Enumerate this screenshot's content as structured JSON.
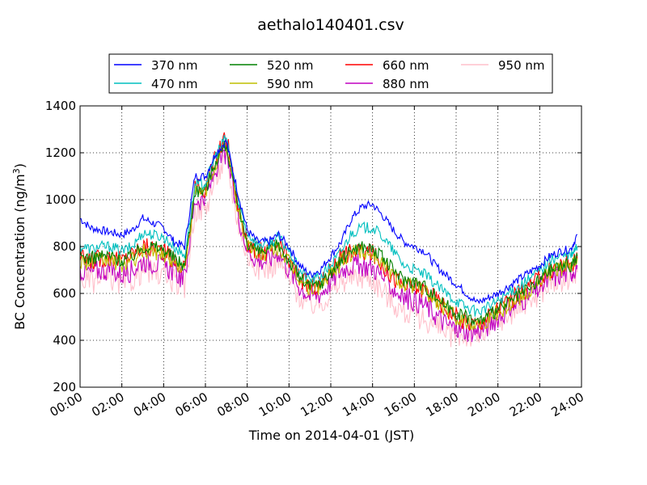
{
  "chart_data": {
    "type": "line",
    "title": "aethalo140401.csv",
    "xlabel": "Time on 2014-04-01 (JST)",
    "ylabel_main": "BC Concentration (ng/m",
    "ylabel_sup": "3",
    "ylabel_end": ")",
    "xlim_hours": [
      0,
      24
    ],
    "ylim": [
      200,
      1400
    ],
    "grid": true,
    "legend_position": "top",
    "x_ticks": [
      {
        "hour": 0,
        "label": "00:00"
      },
      {
        "hour": 2,
        "label": "02:00"
      },
      {
        "hour": 4,
        "label": "04:00"
      },
      {
        "hour": 6,
        "label": "06:00"
      },
      {
        "hour": 8,
        "label": "08:00"
      },
      {
        "hour": 10,
        "label": "10:00"
      },
      {
        "hour": 12,
        "label": "12:00"
      },
      {
        "hour": 14,
        "label": "14:00"
      },
      {
        "hour": 16,
        "label": "16:00"
      },
      {
        "hour": 18,
        "label": "18:00"
      },
      {
        "hour": 20,
        "label": "20:00"
      },
      {
        "hour": 22,
        "label": "22:00"
      },
      {
        "hour": 24,
        "label": "24:00"
      }
    ],
    "y_ticks": [
      200,
      400,
      600,
      800,
      1000,
      1200,
      1400
    ],
    "x_hours": [
      0,
      0.5,
      1,
      1.5,
      2,
      2.5,
      3,
      3.5,
      4,
      4.5,
      5,
      5.5,
      6,
      6.5,
      7,
      7.5,
      8,
      8.5,
      9,
      9.5,
      10,
      10.5,
      11,
      11.5,
      12,
      12.5,
      13,
      13.5,
      14,
      14.5,
      15,
      15.5,
      16,
      16.5,
      17,
      17.5,
      18,
      18.5,
      19,
      19.5,
      20,
      20.5,
      21,
      21.5,
      22,
      22.5,
      23,
      23.5,
      23.8
    ],
    "series": [
      {
        "name": "370 nm",
        "color": "#0000ff",
        "values": [
          920,
          880,
          870,
          860,
          850,
          870,
          920,
          900,
          880,
          820,
          800,
          1100,
          1100,
          1200,
          1250,
          1050,
          870,
          820,
          820,
          850,
          800,
          720,
          680,
          700,
          760,
          820,
          920,
          970,
          980,
          930,
          870,
          820,
          800,
          780,
          720,
          680,
          640,
          600,
          560,
          580,
          600,
          630,
          660,
          690,
          720,
          760,
          780,
          790,
          850
        ]
      },
      {
        "name": "470 nm",
        "color": "#00bfbf",
        "values": [
          800,
          790,
          800,
          800,
          780,
          800,
          860,
          850,
          840,
          800,
          760,
          1060,
          1070,
          1190,
          1270,
          1020,
          860,
          810,
          810,
          840,
          780,
          700,
          660,
          670,
          720,
          780,
          860,
          880,
          880,
          840,
          780,
          720,
          700,
          680,
          640,
          600,
          570,
          540,
          520,
          540,
          570,
          600,
          630,
          660,
          700,
          740,
          760,
          760,
          800
        ]
      },
      {
        "name": "520 nm",
        "color": "#008000",
        "values": [
          760,
          750,
          760,
          760,
          740,
          760,
          800,
          800,
          790,
          750,
          720,
          1040,
          1040,
          1170,
          1240,
          990,
          820,
          780,
          780,
          810,
          740,
          670,
          630,
          640,
          690,
          740,
          790,
          800,
          790,
          750,
          700,
          660,
          650,
          630,
          590,
          550,
          520,
          500,
          480,
          500,
          530,
          560,
          590,
          620,
          660,
          700,
          720,
          720,
          760
        ]
      },
      {
        "name": "590 nm",
        "color": "#bfbf00",
        "values": [
          740,
          730,
          740,
          740,
          720,
          740,
          780,
          780,
          770,
          730,
          700,
          1030,
          1030,
          1160,
          1230,
          980,
          810,
          770,
          770,
          800,
          730,
          660,
          620,
          630,
          680,
          730,
          770,
          780,
          770,
          730,
          680,
          640,
          630,
          610,
          570,
          530,
          500,
          480,
          470,
          490,
          520,
          550,
          580,
          610,
          650,
          690,
          710,
          710,
          750
        ]
      },
      {
        "name": "660 nm",
        "color": "#ff0000",
        "values": [
          750,
          740,
          750,
          760,
          740,
          770,
          800,
          790,
          780,
          740,
          710,
          1050,
          1050,
          1180,
          1280,
          1000,
          820,
          780,
          780,
          810,
          740,
          670,
          630,
          640,
          700,
          760,
          780,
          780,
          770,
          720,
          670,
          630,
          630,
          620,
          580,
          540,
          500,
          480,
          470,
          500,
          540,
          570,
          600,
          630,
          660,
          700,
          720,
          730,
          750
        ]
      },
      {
        "name": "880 nm",
        "color": "#c000c0",
        "values": [
          700,
          690,
          700,
          700,
          680,
          700,
          740,
          730,
          720,
          690,
          660,
          1000,
          1000,
          1130,
          1200,
          960,
          790,
          740,
          740,
          780,
          700,
          630,
          590,
          600,
          650,
          700,
          720,
          720,
          710,
          670,
          620,
          580,
          570,
          550,
          510,
          470,
          450,
          440,
          440,
          460,
          500,
          530,
          560,
          590,
          620,
          660,
          680,
          690,
          720
        ]
      },
      {
        "name": "950 nm",
        "color": "#ffc0cb",
        "values": [
          660,
          650,
          660,
          660,
          640,
          660,
          700,
          690,
          680,
          650,
          620,
          960,
          960,
          1100,
          1170,
          930,
          760,
          710,
          710,
          740,
          660,
          590,
          550,
          560,
          600,
          650,
          670,
          670,
          660,
          610,
          560,
          520,
          510,
          490,
          460,
          430,
          420,
          420,
          420,
          440,
          480,
          510,
          540,
          570,
          600,
          640,
          660,
          660,
          690
        ]
      }
    ]
  }
}
